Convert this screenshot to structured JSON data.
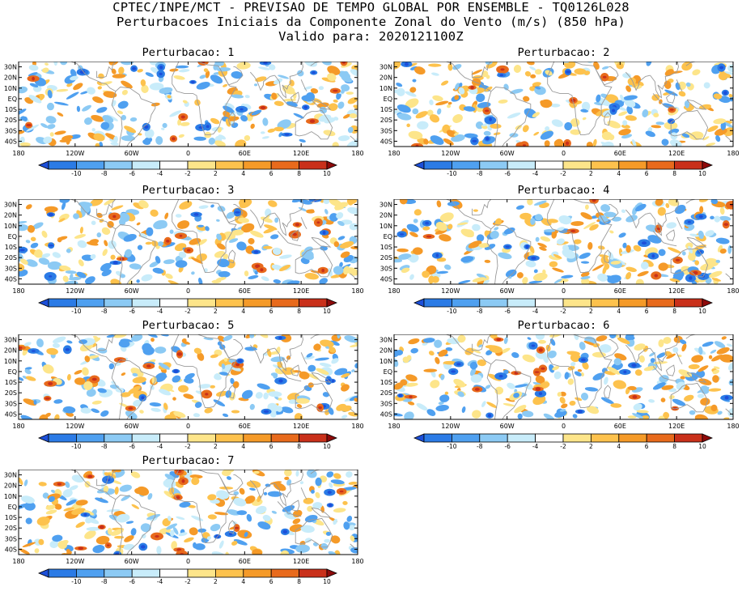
{
  "header": {
    "line1": "CPTEC/INPE/MCT - PREVISAO DE TEMPO GLOBAL POR ENSEMBLE - TQ0126L028",
    "line2": "Perturbacoes Iniciais da Componente Zonal do Vento (m/s) (850 hPa)",
    "line3": "Valido para: 2020121100Z"
  },
  "panels": [
    {
      "title": "Perturbacao: 1"
    },
    {
      "title": "Perturbacao: 2"
    },
    {
      "title": "Perturbacao: 3"
    },
    {
      "title": "Perturbacao: 4"
    },
    {
      "title": "Perturbacao: 5"
    },
    {
      "title": "Perturbacao: 6"
    },
    {
      "title": "Perturbacao: 7"
    }
  ],
  "axes": {
    "lat_labels": [
      "30N",
      "20N",
      "10N",
      "EQ",
      "10S",
      "20S",
      "30S",
      "40S"
    ],
    "lon_labels": [
      "180",
      "120W",
      "60W",
      "0",
      "60E",
      "120E",
      "180"
    ]
  },
  "colorbar": {
    "labels": [
      "-10",
      "-8",
      "-6",
      "-4",
      "-2",
      "2",
      "4",
      "6",
      "8",
      "10"
    ],
    "colors": [
      "#1c4fd9",
      "#2b7be6",
      "#4fa0f0",
      "#8ccaf4",
      "#c8ecfa",
      "#ffffff",
      "#fde58a",
      "#fdc24d",
      "#f59a28",
      "#e86a1c",
      "#c9301a",
      "#8e0a0a"
    ]
  },
  "map_colors": {
    "land_outline": "#9a9a9a",
    "frame": "#000000"
  }
}
